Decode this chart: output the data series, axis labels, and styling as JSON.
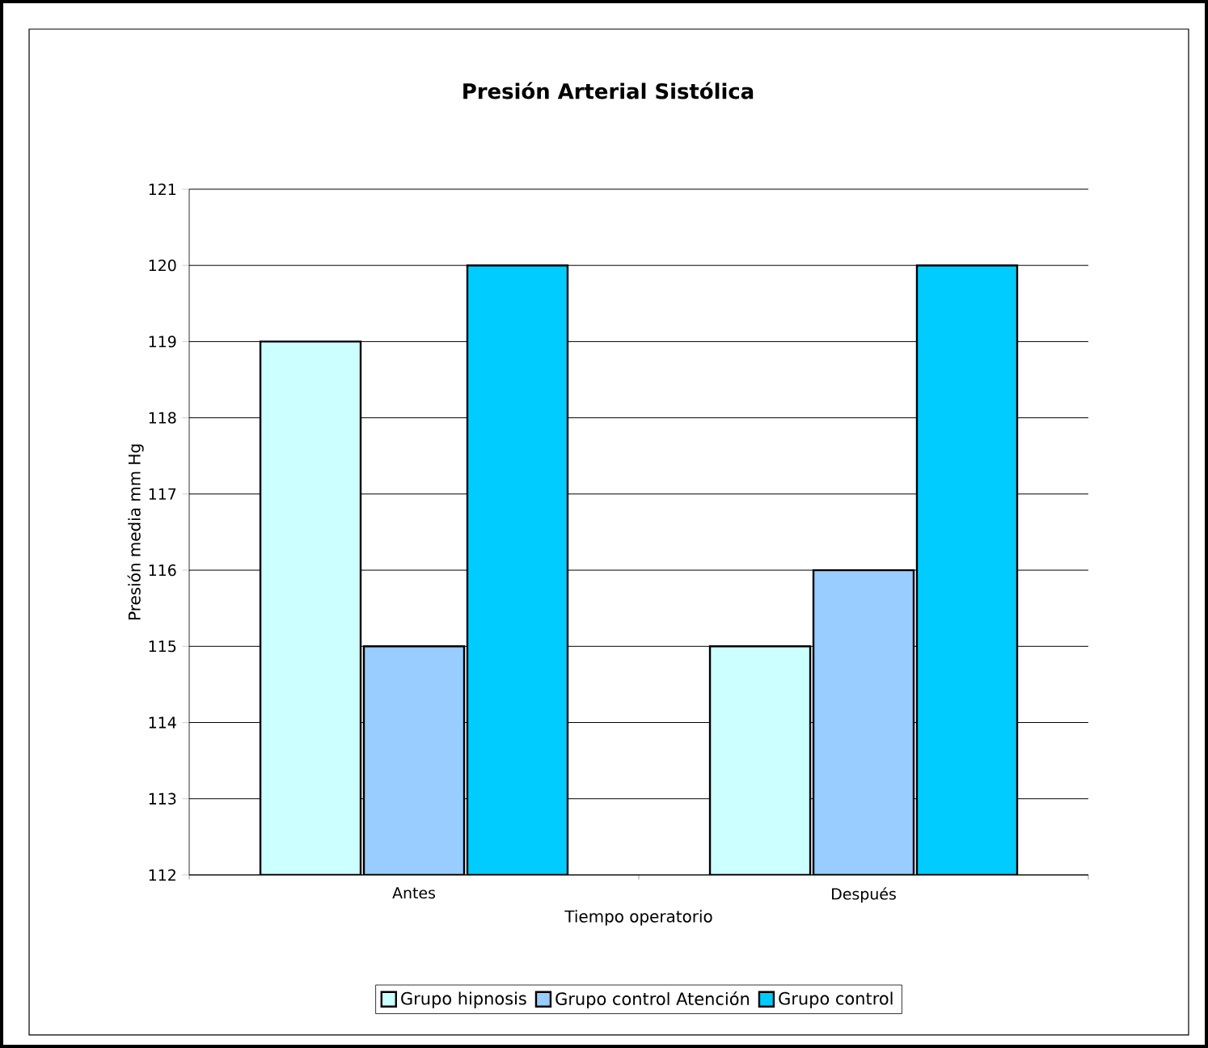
{
  "chart_data": {
    "type": "bar",
    "title": "Presión Arterial Sistólica",
    "xlabel": "Tiempo operatorio",
    "ylabel": "Presión media mm Hg",
    "categories": [
      "Antes",
      "Después"
    ],
    "series": [
      {
        "name": "Grupo hipnosis",
        "color": "#ccffff",
        "values": [
          119,
          115
        ]
      },
      {
        "name": "Grupo control Atención",
        "color": "#99ccff",
        "values": [
          115,
          116
        ]
      },
      {
        "name": "Grupo control",
        "color": "#00ccff",
        "values": [
          120,
          120
        ]
      }
    ],
    "ylim": [
      112,
      121
    ],
    "yticks": [
      112,
      113,
      114,
      115,
      116,
      117,
      118,
      119,
      120,
      121
    ],
    "grid": "y",
    "legend": "bottom"
  }
}
